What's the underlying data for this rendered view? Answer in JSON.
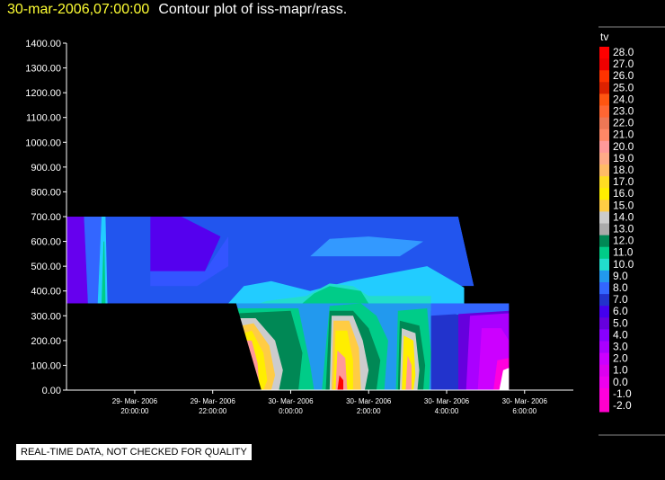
{
  "header": {
    "date": "30-mar-2006,07:00:00",
    "title": "Contour plot of iss-mapr/rass."
  },
  "notice": "REAL-TIME DATA, NOT CHECKED FOR QUALITY",
  "chart_data": {
    "type": "contour",
    "title": "Contour plot of iss-mapr/rass.",
    "variable": "tv",
    "y": {
      "min": 0,
      "max": 1400,
      "step": 100,
      "tick_labels": [
        "0.00",
        "100.00",
        "200.00",
        "300.00",
        "400.00",
        "500.00",
        "600.00",
        "700.00",
        "800.00",
        "900.00",
        "1000.00",
        "1100.00",
        "1200.00",
        "1300.00",
        "1400.00"
      ]
    },
    "x": {
      "min_hours": -5.75,
      "max_hours": 7.25,
      "tick_hours": [
        -4,
        -2,
        0,
        2,
        4,
        6
      ],
      "tick_labels": [
        [
          "29- Mar- 2006",
          "20:00:00"
        ],
        [
          "29- Mar- 2006",
          "22:00:00"
        ],
        [
          "30- Mar- 2006",
          "0:00:00"
        ],
        [
          "30- Mar- 2006",
          "2:00:00"
        ],
        [
          "30- Mar- 2006",
          "4:00:00"
        ],
        [
          "30- Mar- 2006",
          "6:00:00"
        ]
      ]
    },
    "legend": {
      "title": "tv",
      "labels": [
        "28.0",
        "27.0",
        "26.0",
        "25.0",
        "24.0",
        "23.0",
        "22.0",
        "21.0",
        "20.0",
        "19.0",
        "18.0",
        "17.0",
        "16.0",
        "15.0",
        "14.0",
        "13.0",
        "12.0",
        "11.0",
        "10.0",
        "9.0",
        "8.0",
        "7.0",
        "6.0",
        "5.0",
        "4.0",
        "3.0",
        "2.0",
        "1.0",
        "0.0",
        "-1.0",
        "-2.0"
      ],
      "colors": [
        "#ff0000",
        "#ee0000",
        "#ff3300",
        "#dd2200",
        "#ff5511",
        "#ff6633",
        "#ee7755",
        "#ff8866",
        "#ff9999",
        "#ffaa88",
        "#ffbb66",
        "#ffdd22",
        "#ffee00",
        "#ffcc44",
        "#cccccc",
        "#aaaaaa",
        "#008855",
        "#00cc88",
        "#22ddcc",
        "#2299ee",
        "#3366ff",
        "#2233cc",
        "#4400ee",
        "#6600dd",
        "#8800ff",
        "#aa00ff",
        "#cc00ff",
        "#dd00ee",
        "#ee00ee",
        "#ff00dd",
        "#ff00cc"
      ]
    }
  }
}
